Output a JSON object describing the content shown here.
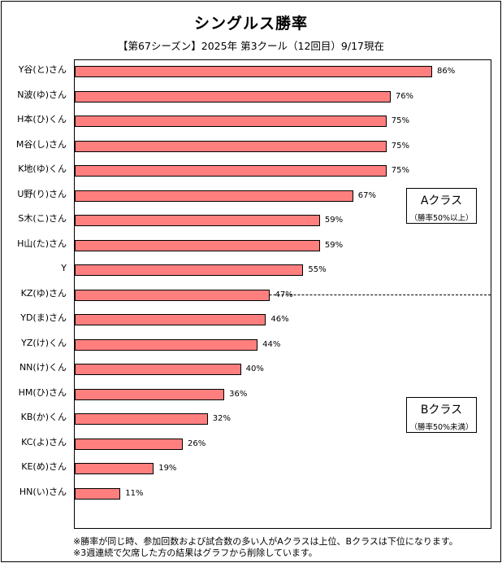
{
  "chart_data": {
    "type": "bar",
    "orientation": "horizontal",
    "title": "シングルス勝率",
    "subtitle": "【第67シーズン】2025年 第3クール（12回目）9/17現在",
    "categories": [
      "Y谷(と)さん",
      "N波(ゆ)さん",
      "H本(ひ)くん",
      "M谷(し)さん",
      "K地(ゆ)くん",
      "U野(り)さん",
      "S木(こ)さん",
      "H山(た)さん",
      "Y",
      "KZ(ゆ)さん",
      "YD(ま)さん",
      "YZ(け)くん",
      "NN(け)くん",
      "HM(ひ)さん",
      "KB(か)くん",
      "KC(よ)さん",
      "KE(め)さん",
      "HN(い)さん"
    ],
    "values": [
      86,
      76,
      75,
      75,
      75,
      67,
      59,
      59,
      55,
      47,
      46,
      44,
      40,
      36,
      32,
      26,
      19,
      11
    ],
    "value_labels": [
      "86%",
      "76%",
      "75%",
      "75%",
      "75%",
      "67%",
      "59%",
      "59%",
      "55%",
      "47%",
      "46%",
      "44%",
      "40%",
      "36%",
      "32%",
      "26%",
      "19%",
      "11%"
    ],
    "xlim": [
      0,
      100
    ],
    "bar_color": "#ff7f7f",
    "groups": [
      {
        "label": "Aクラス",
        "note": "（勝率50%以上）"
      },
      {
        "label": "Bクラス",
        "note": "（勝率50%未満）"
      }
    ],
    "notes": [
      "※勝率が同じ時、参加回数および試合数の多い人がAクラスは上位、Bクラスは下位になります。",
      "※3週連続で欠席した方の結果はグラフから削除しています。"
    ]
  }
}
